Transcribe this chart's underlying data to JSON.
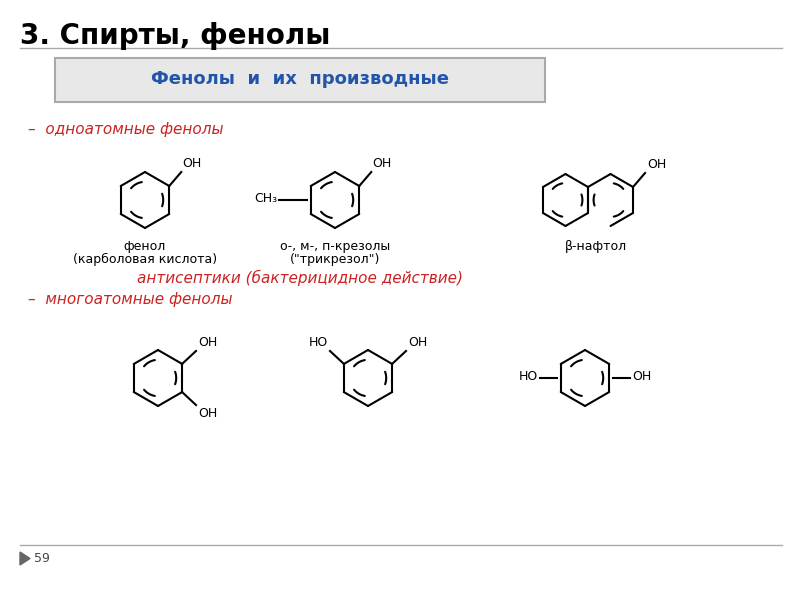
{
  "title": "3. Спирты, фенолы",
  "box_title": "Фенолы  и  их  производные",
  "section1": "–  одноатомные фенолы",
  "section2": "–  многоатомные фенолы",
  "antiseptic_text": "антисептики (бактерицидное действие)",
  "label1a": "фенол",
  "label1b": "(карболовая кислота)",
  "label2a": "о-, м-, п-крезолы",
  "label2b": "(\"трикрезол\")",
  "label3": "β-нафтол",
  "page_num": "59",
  "bg_color": "#ffffff",
  "box_bg": "#e8e8e8",
  "box_border": "#aaaaaa",
  "title_color": "#000000",
  "box_title_color": "#2255aa",
  "section_color": "#cc2222",
  "antiseptic_color": "#cc2222",
  "label_color": "#000000",
  "struct_color": "#000000"
}
